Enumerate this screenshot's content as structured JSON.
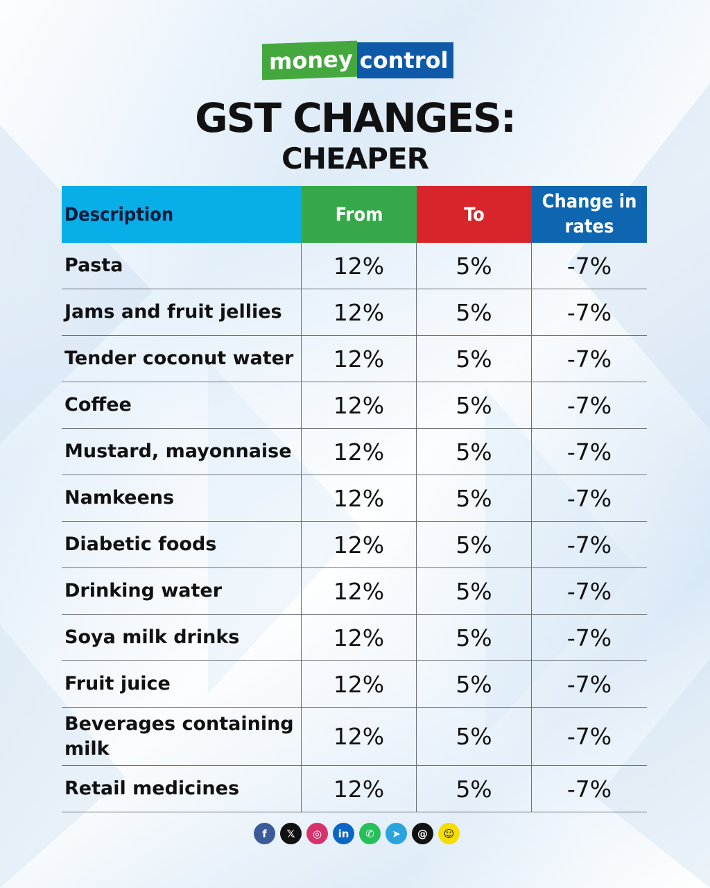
{
  "brand": {
    "part1": "money",
    "part2": "control"
  },
  "title": "GST CHANGES:",
  "subtitle": "CHEAPER",
  "columns": [
    "Description",
    "From",
    "To",
    "Change in rates"
  ],
  "rows": [
    {
      "description": "Pasta",
      "from": "12%",
      "to": "5%",
      "change": "-7%"
    },
    {
      "description": "Jams and fruit jellies",
      "from": "12%",
      "to": "5%",
      "change": "-7%"
    },
    {
      "description": "Tender coconut water",
      "from": "12%",
      "to": "5%",
      "change": "-7%"
    },
    {
      "description": "Coffee",
      "from": "12%",
      "to": "5%",
      "change": "-7%"
    },
    {
      "description": "Mustard, mayonnaise",
      "from": "12%",
      "to": "5%",
      "change": "-7%"
    },
    {
      "description": "Namkeens",
      "from": "12%",
      "to": "5%",
      "change": "-7%"
    },
    {
      "description": "Diabetic foods",
      "from": "12%",
      "to": "5%",
      "change": "-7%"
    },
    {
      "description": "Drinking water",
      "from": "12%",
      "to": "5%",
      "change": "-7%"
    },
    {
      "description": "Soya milk drinks",
      "from": "12%",
      "to": "5%",
      "change": "-7%"
    },
    {
      "description": "Fruit  juice",
      "from": "12%",
      "to": "5%",
      "change": "-7%"
    },
    {
      "description": "Beverages containing milk",
      "from": "12%",
      "to": "5%",
      "change": "-7%"
    },
    {
      "description": "Retail medicines",
      "from": "12%",
      "to": "5%",
      "change": "-7%"
    }
  ],
  "social_icons": [
    {
      "name": "facebook-icon",
      "glyph": "f",
      "color": "#3b5a9a"
    },
    {
      "name": "x-icon",
      "glyph": "𝕏",
      "color": "#111111"
    },
    {
      "name": "instagram-icon",
      "glyph": "◎",
      "color": "#d6336c"
    },
    {
      "name": "linkedin-icon",
      "glyph": "in",
      "color": "#0a66c2"
    },
    {
      "name": "whatsapp-icon",
      "glyph": "✆",
      "color": "#25c05a"
    },
    {
      "name": "telegram-icon",
      "glyph": "➤",
      "color": "#2aa3df"
    },
    {
      "name": "threads-icon",
      "glyph": "@",
      "color": "#111111"
    },
    {
      "name": "snapchat-icon",
      "glyph": "☺",
      "color": "#f5dd00"
    }
  ],
  "colors": {
    "description_header": "#08aee8",
    "from_header": "#37a84a",
    "to_header": "#d7252b",
    "change_header": "#0f66b0",
    "brand_green": "#45a83f",
    "brand_blue": "#0f5aa8"
  }
}
